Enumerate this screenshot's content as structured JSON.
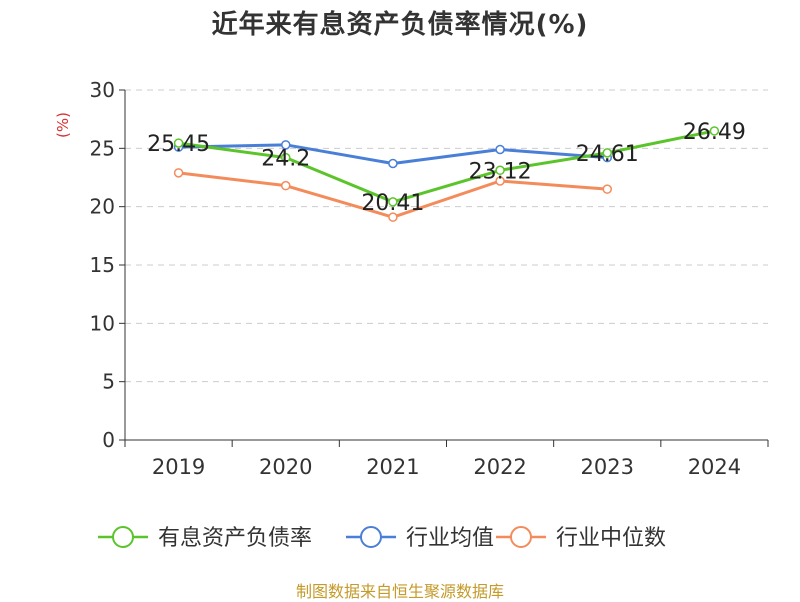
{
  "chart_data": {
    "type": "line",
    "title": "近年来有息资产负债率情况(%)",
    "ylabel": "(%)",
    "categories": [
      "2019",
      "2020",
      "2021",
      "2022",
      "2023",
      "2024"
    ],
    "ylim": [
      0,
      30
    ],
    "yticks": [
      "0",
      "5",
      "10",
      "15",
      "20",
      "25",
      "30"
    ],
    "grid": true,
    "legend_position": "bottom",
    "series": [
      {
        "name": "有息资产负债率",
        "color": "#5cc42b",
        "values": [
          25.45,
          24.2,
          20.41,
          23.12,
          24.61,
          26.49
        ],
        "labels": [
          "25.45",
          "24.2",
          "20.41",
          "23.12",
          "24.61",
          "26.49"
        ]
      },
      {
        "name": "行业均值",
        "color": "#4a7fd8",
        "values": [
          25.1,
          25.3,
          23.7,
          24.9,
          24.2,
          null
        ]
      },
      {
        "name": "行业中位数",
        "color": "#f48b5b",
        "values": [
          22.9,
          21.8,
          19.1,
          22.2,
          21.5,
          null
        ]
      }
    ]
  },
  "footer": {
    "source": "制图数据来自恒生聚源数据库"
  }
}
